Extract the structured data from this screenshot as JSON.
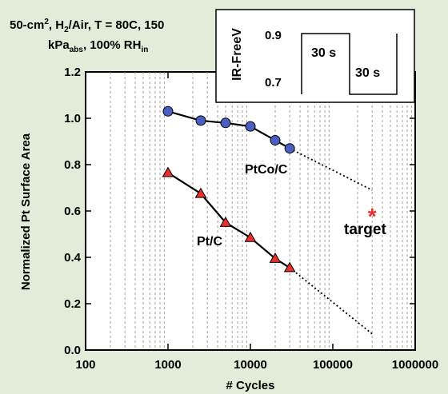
{
  "chart_data": {
    "type": "line",
    "x_scale": "log",
    "xlim": [
      100,
      1000000
    ],
    "ylim": [
      0.0,
      1.2
    ],
    "xlabel": "# Cycles",
    "ylabel": "Normalized Pt Surface Area",
    "x_ticks": [
      "100",
      "1000",
      "10000",
      "100000",
      "1000000"
    ],
    "y_ticks": [
      "0.0",
      "0.2",
      "0.4",
      "0.6",
      "0.8",
      "1.0",
      "1.2"
    ],
    "grid": "vertical-minor-dashed",
    "title_parts": {
      "l1_a": "50-cm",
      "l1_sup": "2",
      "l1_b": ", H",
      "l1_sub": "2",
      "l1_c": "/Air, T = 80C, 150",
      "l2_a": "kPa",
      "l2_sub": "abs",
      "l2_b": ", 100% RH",
      "l2_sub2": "in"
    },
    "series": [
      {
        "name": "PtCo/C",
        "marker": "circle",
        "color": "#4a5fc1",
        "x": [
          1000,
          2500,
          5000,
          10000,
          20000,
          30000
        ],
        "y": [
          1.03,
          0.99,
          0.98,
          0.965,
          0.905,
          0.87
        ],
        "trend": {
          "x": [
            30000,
            300000
          ],
          "y": [
            0.87,
            0.69
          ]
        }
      },
      {
        "name": "Pt/C",
        "marker": "triangle",
        "color": "#e8302c",
        "x": [
          1000,
          2500,
          5000,
          10000,
          20000,
          30000
        ],
        "y": [
          0.765,
          0.675,
          0.55,
          0.485,
          0.395,
          0.355
        ],
        "trend": {
          "x": [
            30000,
            300000
          ],
          "y": [
            0.355,
            0.07
          ]
        }
      }
    ],
    "target": {
      "label": "target",
      "symbol": "*",
      "x": 300000,
      "y": 0.6,
      "color": "#e8302c"
    },
    "inset": {
      "ylabel": "IR-FreeV",
      "v_high": "0.9",
      "v_low": "0.7",
      "step1": "30 s",
      "step2": "30 s"
    }
  }
}
